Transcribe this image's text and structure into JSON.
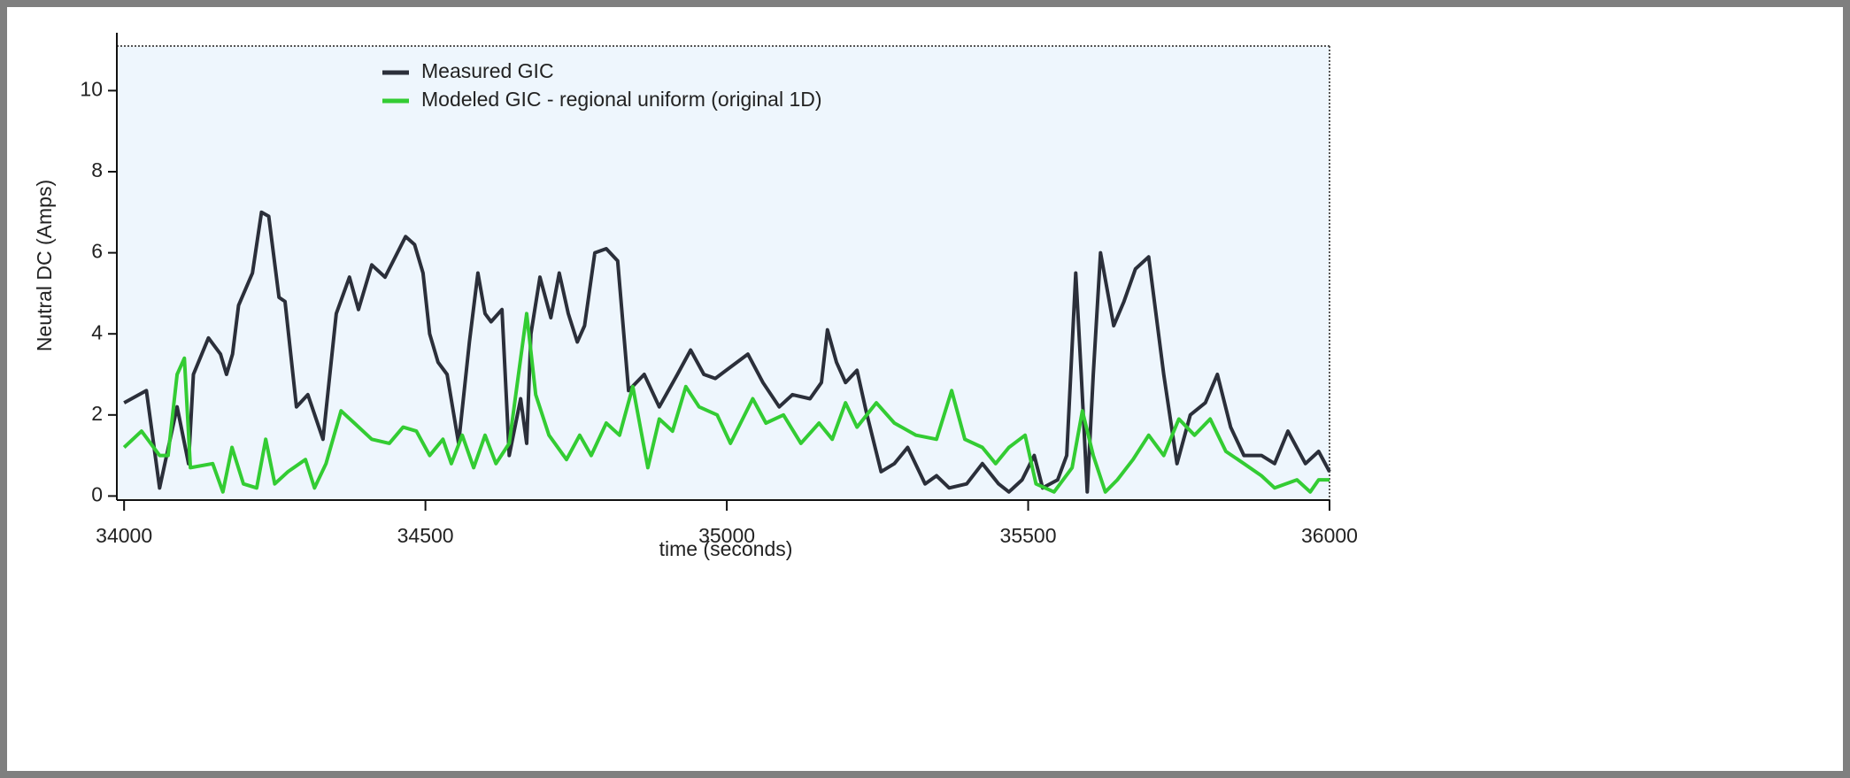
{
  "chart_data": {
    "type": "line",
    "xlabel": "time (seconds)",
    "ylabel": "Neutral DC (Amps)",
    "xlim": [
      33988,
      36000
    ],
    "ylim": [
      -0.1,
      11.1
    ],
    "xticks": [
      34000,
      34500,
      35000,
      35500,
      36000
    ],
    "yticks": [
      0,
      2,
      4,
      6,
      8,
      10
    ],
    "legend": "top",
    "series": [
      {
        "name": "Measured GIC",
        "color": "#2b2f3a",
        "x": [
          34000,
          34037,
          34059,
          34088,
          34107,
          34115,
          34140,
          34160,
          34170,
          34180,
          34190,
          34213,
          34228,
          34240,
          34257,
          34267,
          34286,
          34305,
          34330,
          34352,
          34374,
          34389,
          34411,
          34433,
          34467,
          34482,
          34496,
          34507,
          34521,
          34536,
          34555,
          34573,
          34587,
          34599,
          34609,
          34627,
          34639,
          34658,
          34668,
          34675,
          34690,
          34708,
          34722,
          34737,
          34752,
          34764,
          34781,
          34800,
          34819,
          34837,
          34863,
          34888,
          34918,
          34940,
          34962,
          34981,
          34999,
          35035,
          35060,
          35087,
          35109,
          35138,
          35157,
          35167,
          35182,
          35197,
          35216,
          35231,
          35256,
          35278,
          35300,
          35329,
          35348,
          35369,
          35398,
          35424,
          35451,
          35468,
          35490,
          35510,
          35524,
          35549,
          35564,
          35579,
          35588,
          35598,
          35608,
          35620,
          35642,
          35659,
          35678,
          35700,
          35725,
          35747,
          35769,
          35794,
          35814,
          35836,
          35858,
          35887,
          35909,
          35931,
          35960,
          35982,
          36000
        ],
        "values": [
          2.3,
          2.6,
          0.2,
          2.2,
          0.8,
          3.0,
          3.9,
          3.5,
          3.0,
          3.5,
          4.7,
          5.5,
          7.0,
          6.9,
          4.9,
          4.8,
          2.2,
          2.5,
          1.4,
          4.5,
          5.4,
          4.6,
          5.7,
          5.4,
          6.4,
          6.2,
          5.5,
          4.0,
          3.3,
          3.0,
          1.3,
          3.8,
          5.5,
          4.5,
          4.3,
          4.6,
          1.0,
          2.4,
          1.3,
          4.0,
          5.4,
          4.4,
          5.5,
          4.5,
          3.8,
          4.2,
          6.0,
          6.1,
          5.8,
          2.6,
          3.0,
          2.2,
          3.0,
          3.6,
          3.0,
          2.9,
          3.1,
          3.5,
          2.8,
          2.2,
          2.5,
          2.4,
          2.8,
          4.1,
          3.3,
          2.8,
          3.1,
          2.1,
          0.6,
          0.8,
          1.2,
          0.3,
          0.5,
          0.2,
          0.3,
          0.8,
          0.3,
          0.1,
          0.4,
          1.0,
          0.2,
          0.4,
          1.0,
          5.5,
          3.0,
          0.1,
          3.0,
          6.0,
          4.2,
          4.8,
          5.6,
          5.9,
          3.0,
          0.8,
          2.0,
          2.3,
          3.0,
          1.7,
          1.0,
          1.0,
          0.8,
          1.6,
          0.8,
          1.1,
          0.6
        ]
      },
      {
        "name": "Modeled GIC - regional uniform (original 1D)",
        "color": "#33cc33",
        "x": [
          34000,
          34029,
          34059,
          34073,
          34088,
          34100,
          34110,
          34147,
          34164,
          34179,
          34198,
          34220,
          34235,
          34250,
          34272,
          34301,
          34316,
          34335,
          34360,
          34382,
          34411,
          34440,
          34463,
          34485,
          34507,
          34529,
          34543,
          34561,
          34580,
          34599,
          34617,
          34639,
          34668,
          34683,
          34705,
          34734,
          34756,
          34775,
          34800,
          34822,
          34844,
          34869,
          34888,
          34910,
          34932,
          34954,
          34984,
          35006,
          35043,
          35065,
          35094,
          35123,
          35153,
          35175,
          35197,
          35216,
          35248,
          35278,
          35314,
          35348,
          35373,
          35395,
          35424,
          35446,
          35468,
          35495,
          35513,
          35543,
          35573,
          35590,
          35608,
          35628,
          35648,
          35674,
          35700,
          35725,
          35750,
          35776,
          35802,
          35828,
          35858,
          35887,
          35909,
          35946,
          35968,
          35982,
          36000
        ],
        "values": [
          1.2,
          1.6,
          1.0,
          1.0,
          3.0,
          3.4,
          0.7,
          0.8,
          0.1,
          1.2,
          0.3,
          0.2,
          1.4,
          0.3,
          0.6,
          0.9,
          0.2,
          0.8,
          2.1,
          1.8,
          1.4,
          1.3,
          1.7,
          1.6,
          1.0,
          1.4,
          0.8,
          1.5,
          0.7,
          1.5,
          0.8,
          1.3,
          4.5,
          2.5,
          1.5,
          0.9,
          1.5,
          1.0,
          1.8,
          1.5,
          2.7,
          0.7,
          1.9,
          1.6,
          2.7,
          2.2,
          2.0,
          1.3,
          2.4,
          1.8,
          2.0,
          1.3,
          1.8,
          1.4,
          2.3,
          1.7,
          2.3,
          1.8,
          1.5,
          1.4,
          2.6,
          1.4,
          1.2,
          0.8,
          1.2,
          1.5,
          0.3,
          0.1,
          0.7,
          2.1,
          1.0,
          0.1,
          0.4,
          0.9,
          1.5,
          1.0,
          1.9,
          1.5,
          1.9,
          1.1,
          0.8,
          0.5,
          0.2,
          0.4,
          0.1,
          0.4,
          0.4
        ]
      }
    ]
  }
}
